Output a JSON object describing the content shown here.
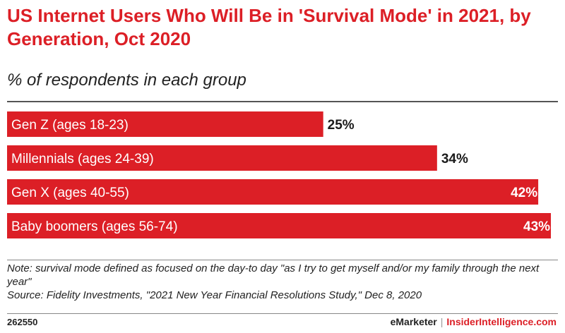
{
  "title": "US Internet Users Who Will Be in 'Survival Mode' in 2021, by Generation, Oct 2020",
  "subtitle": "% of respondents in each group",
  "chart_data": {
    "type": "bar",
    "orientation": "horizontal",
    "categories": [
      "Gen Z (ages 18-23)",
      "Millennials (ages 24-39)",
      "Gen X (ages 40-55)",
      "Baby boomers (ages 56-74)"
    ],
    "values": [
      25,
      34,
      42,
      43
    ],
    "value_labels": [
      "25%",
      "34%",
      "42%",
      "43%"
    ],
    "unit": "%",
    "xlim": [
      0,
      43
    ],
    "grid": false,
    "bar_color": "#dc1f26"
  },
  "note": "Note: survival mode defined as focused on the day-to day \"as I try to get myself and/or my family through the next year\"",
  "source": "Source: Fidelity Investments, \"2021 New Year Financial Resolutions Study,\" Dec 8, 2020",
  "chart_id": "262550",
  "brand": {
    "emarketer": "eMarketer",
    "separator": "|",
    "insider": "InsiderIntelligence.com"
  },
  "colors": {
    "accent": "#dc1f26"
  }
}
